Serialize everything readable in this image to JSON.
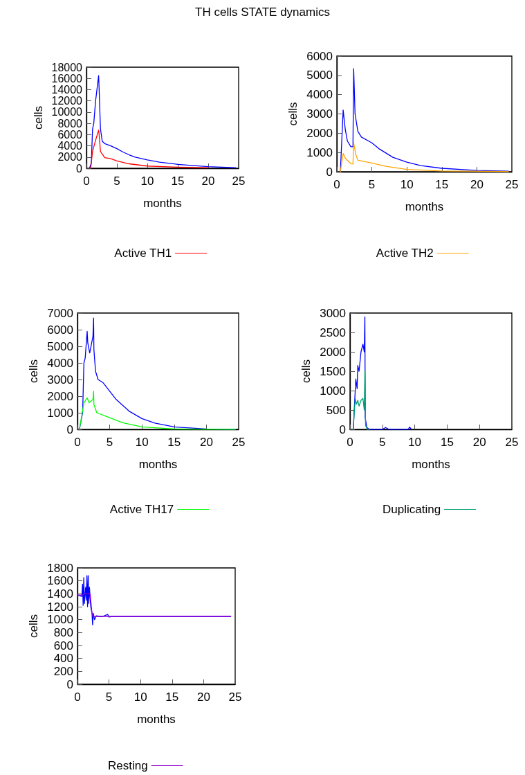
{
  "chart_data": [
    {
      "type": "line",
      "title": "TH cells STATE dynamics",
      "xlabel": "months",
      "ylabel": "cells",
      "xlim": [
        0,
        25
      ],
      "xticks": [
        0,
        5,
        10,
        15,
        20,
        25
      ],
      "ylim": [
        0,
        18000
      ],
      "yticks": [
        0,
        2000,
        4000,
        6000,
        8000,
        10000,
        12000,
        14000,
        16000,
        18000
      ],
      "legend": "bottom",
      "marker": "none",
      "line_style": "solid",
      "grid": false,
      "series": [
        {
          "color": "#0000ff",
          "x": [
            0.5,
            0.8,
            1,
            1.2,
            1.5,
            2,
            2.1,
            2.3,
            2.6,
            3,
            4,
            5,
            6,
            7,
            8,
            10,
            12,
            15,
            20,
            24.5
          ],
          "values": [
            0,
            1000,
            7000,
            8000,
            12000,
            16500,
            13500,
            7000,
            4800,
            4400,
            4000,
            3500,
            2900,
            2400,
            2000,
            1500,
            1100,
            700,
            300,
            100
          ]
        },
        {
          "name": "Active TH1",
          "color": "#ff0000",
          "x": [
            0.7,
            1,
            1.5,
            2,
            2.1,
            2.3,
            3,
            4,
            5,
            7,
            10,
            15,
            20
          ],
          "values": [
            0,
            3000,
            5000,
            6800,
            5800,
            3000,
            1900,
            1700,
            1300,
            800,
            400,
            200,
            100
          ]
        }
      ]
    },
    {
      "type": "line",
      "xlabel": "months",
      "ylabel": "cells",
      "xlim": [
        0,
        25
      ],
      "xticks": [
        0,
        5,
        10,
        15,
        20,
        25
      ],
      "ylim": [
        0,
        6000
      ],
      "yticks": [
        0,
        1000,
        2000,
        3000,
        4000,
        5000,
        6000
      ],
      "legend": "bottom",
      "marker": "none",
      "line_style": "solid",
      "grid": false,
      "series": [
        {
          "color": "#0000ff",
          "x": [
            0.5,
            0.9,
            1.2,
            1.5,
            2,
            2.3,
            2.4,
            2.6,
            3,
            3.5,
            5,
            6,
            8,
            10,
            12,
            15,
            20,
            24.5
          ],
          "values": [
            0,
            3200,
            2200,
            1600,
            1300,
            1300,
            5350,
            3000,
            2100,
            1800,
            1500,
            1200,
            750,
            500,
            320,
            180,
            70,
            30
          ]
        },
        {
          "name": "Active TH2",
          "color": "#ffa500",
          "x": [
            0.5,
            0.9,
            1.2,
            2,
            2.3,
            2.4,
            2.7,
            3,
            5,
            7,
            10,
            15,
            24.5
          ],
          "values": [
            0,
            950,
            700,
            420,
            400,
            1500,
            900,
            600,
            450,
            280,
            120,
            40,
            10
          ]
        }
      ]
    },
    {
      "type": "line",
      "xlabel": "months",
      "ylabel": "cells",
      "xlim": [
        0,
        25
      ],
      "xticks": [
        0,
        5,
        10,
        15,
        20,
        25
      ],
      "ylim": [
        0,
        7000
      ],
      "yticks": [
        0,
        1000,
        2000,
        3000,
        4000,
        5000,
        6000,
        7000
      ],
      "legend": "bottom",
      "marker": "none",
      "line_style": "solid",
      "grid": false,
      "series": [
        {
          "color": "#0000ff",
          "x": [
            0.3,
            0.8,
            1,
            1.2,
            1.5,
            1.6,
            1.9,
            2.4,
            2.5,
            2.55,
            2.8,
            3.2,
            4,
            5,
            6,
            8,
            10,
            12,
            15,
            20,
            24.5
          ],
          "values": [
            0,
            1000,
            4000,
            4300,
            5900,
            5200,
            4600,
            5600,
            6700,
            4800,
            3500,
            3000,
            2800,
            2300,
            1800,
            1100,
            650,
            380,
            150,
            30,
            0
          ]
        },
        {
          "name": "Active TH17",
          "color": "#00ff00",
          "x": [
            0.3,
            1,
            1.5,
            1.8,
            2.4,
            2.5,
            2.55,
            3,
            5,
            7,
            10,
            15,
            24.5
          ],
          "values": [
            0,
            1600,
            1900,
            1600,
            1800,
            2300,
            1500,
            1000,
            700,
            400,
            150,
            30,
            0
          ]
        }
      ]
    },
    {
      "type": "line",
      "xlabel": "months",
      "ylabel": "cells",
      "xlim": [
        0,
        25
      ],
      "xticks": [
        0,
        5,
        10,
        15,
        20,
        25
      ],
      "ylim": [
        0,
        3000
      ],
      "yticks": [
        0,
        500,
        1000,
        1500,
        2000,
        2500,
        3000
      ],
      "legend": "bottom",
      "marker": "none",
      "line_style": "solid",
      "grid": false,
      "series": [
        {
          "color": "#0000ff",
          "x": [
            0.5,
            0.9,
            1.1,
            1.2,
            1.4,
            1.7,
            2,
            2.2,
            2.3,
            2.35,
            2.6,
            3,
            5,
            5.5,
            6,
            9,
            9.2,
            9.5
          ],
          "values": [
            0,
            1300,
            1050,
            1650,
            1500,
            2000,
            2200,
            2000,
            2900,
            300,
            50,
            0,
            0,
            50,
            0,
            0,
            60,
            0
          ]
        },
        {
          "name": "Duplicating",
          "color": "#009e73",
          "x": [
            0.5,
            0.8,
            1,
            1.2,
            1.4,
            1.7,
            2,
            2.2,
            2.3,
            2.4,
            2.7,
            3
          ],
          "values": [
            0,
            800,
            650,
            750,
            600,
            750,
            800,
            500,
            1500,
            100,
            0,
            0
          ]
        }
      ]
    },
    {
      "type": "line",
      "xlabel": "months",
      "ylabel": "cells",
      "xlim": [
        0,
        25
      ],
      "xticks": [
        0,
        5,
        10,
        15,
        20,
        25
      ],
      "ylim": [
        0,
        1800
      ],
      "yticks": [
        0,
        200,
        400,
        600,
        800,
        1000,
        1200,
        1400,
        1600,
        1800
      ],
      "legend": "bottom",
      "marker": "none",
      "line_style": "solid",
      "grid": false,
      "series": [
        {
          "color": "#0000ff",
          "x": [
            0,
            0.7,
            0.8,
            0.9,
            1,
            1.1,
            1.3,
            1.4,
            1.5,
            1.6,
            1.7,
            1.8,
            1.9,
            2.1,
            2.3,
            2.4,
            2.5,
            2.7,
            3,
            3.5,
            4,
            4.8,
            5,
            5.5,
            24.3
          ],
          "values": [
            1380,
            1360,
            1550,
            1220,
            1650,
            1250,
            1500,
            1300,
            1680,
            1200,
            1680,
            1250,
            1500,
            1200,
            1100,
            920,
            1100,
            1000,
            1060,
            1050,
            1050,
            1080,
            1040,
            1050,
            1050
          ]
        },
        {
          "name": "Resting",
          "color": "#9400d3",
          "x": [
            0,
            0.8,
            1,
            1.5,
            2,
            2.3,
            2.5,
            24.3
          ],
          "values": [
            1380,
            1380,
            1400,
            1400,
            1400,
            1100,
            1050,
            1050
          ]
        }
      ]
    }
  ]
}
